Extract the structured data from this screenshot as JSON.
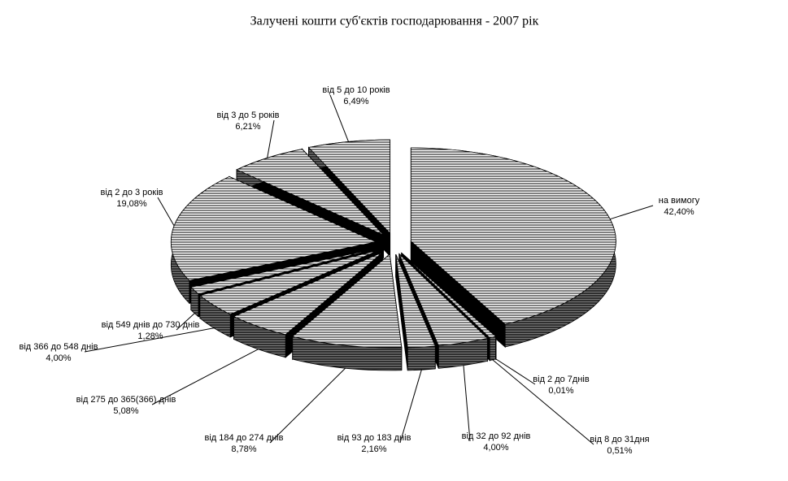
{
  "chart_data": {
    "type": "pie3d",
    "title": "Залучені кошти суб'єктів господарювання - 2007 рік",
    "categories": [
      "на вимогу",
      "від 2 до 7днів",
      "від 8 до 31дня",
      "від 32 до 92 днів",
      "від 93 до 183 днів",
      "від 184 до 274 днів",
      "від 275 до 365(366) днів",
      "від 366 до 548 днів",
      "від 549 днів до 730 днів",
      "від 2 до 3 років",
      "від 3 до 5 років",
      "від 5 до 10 років"
    ],
    "values": [
      42.4,
      0.01,
      0.51,
      4.0,
      2.16,
      8.78,
      5.08,
      4.0,
      1.28,
      19.08,
      6.21,
      6.49
    ],
    "value_labels": [
      "42,40%",
      "0,01%",
      "0,51%",
      "4,00%",
      "2,16%",
      "8,78%",
      "5,08%",
      "4,00%",
      "1,28%",
      "19,08%",
      "6,21%",
      "6,49%"
    ]
  }
}
